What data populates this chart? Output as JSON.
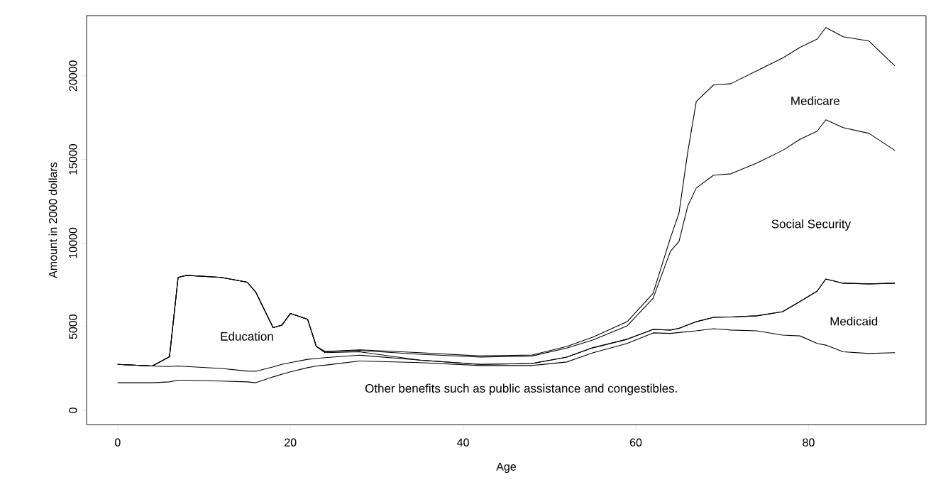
{
  "chart_data": {
    "type": "line",
    "xlabel": "Age",
    "ylabel": "Amount in 2000 dollars",
    "x": [
      0,
      4,
      6,
      7,
      8,
      12,
      15,
      16,
      18,
      19,
      20,
      22,
      23,
      24,
      28,
      35,
      42,
      48,
      52,
      55,
      59,
      62,
      64,
      65,
      66,
      67,
      69,
      71,
      74,
      77,
      79,
      81,
      82,
      84,
      87,
      90
    ],
    "series": [
      {
        "color": "#000000",
        "values": [
          1650,
          1650,
          1700,
          1800,
          1800,
          1750,
          1700,
          1650,
          2000,
          2150,
          2300,
          2550,
          2650,
          2700,
          2950,
          2850,
          2680,
          2680,
          2890,
          3440,
          4000,
          4630,
          4600,
          4650,
          4700,
          4750,
          4880,
          4800,
          4750,
          4500,
          4450,
          4000,
          3900,
          3500,
          3400,
          3450
        ]
      },
      {
        "color": "#000000",
        "values": [
          2750,
          2650,
          2620,
          2650,
          2620,
          2500,
          2350,
          2330,
          2600,
          2750,
          2850,
          3050,
          3100,
          3150,
          3300,
          3000,
          2750,
          2800,
          3180,
          3740,
          4250,
          4840,
          4800,
          4900,
          5100,
          5300,
          5560,
          5580,
          5650,
          5900,
          6500,
          7130,
          7850,
          7600,
          7560,
          7600
        ]
      },
      {
        "color": "#000000",
        "values": [
          2750,
          2650,
          3200,
          7950,
          8070,
          7950,
          7660,
          7060,
          4940,
          5090,
          5790,
          5440,
          3820,
          3450,
          3500,
          3000,
          2750,
          2800,
          3180,
          3740,
          4250,
          4840,
          4800,
          4900,
          5100,
          5300,
          5560,
          5580,
          5650,
          5900,
          6500,
          7130,
          7850,
          7600,
          7560,
          7600
        ]
      },
      {
        "color": "#000000",
        "values": [
          2750,
          2650,
          3200,
          7950,
          8070,
          7950,
          7660,
          7060,
          4940,
          5090,
          5790,
          5440,
          3820,
          3500,
          3580,
          3350,
          3180,
          3250,
          3720,
          4200,
          5050,
          6700,
          9500,
          10100,
          12200,
          13290,
          14060,
          14140,
          14780,
          15540,
          16200,
          16690,
          17370,
          16900,
          16560,
          15540
        ]
      },
      {
        "color": "#000000",
        "values": [
          2750,
          2650,
          3200,
          7950,
          8070,
          7950,
          7660,
          7060,
          4940,
          5090,
          5790,
          5440,
          3820,
          3520,
          3620,
          3450,
          3250,
          3310,
          3820,
          4370,
          5300,
          7000,
          10300,
          11800,
          15400,
          18470,
          19450,
          19530,
          20300,
          21060,
          21700,
          22200,
          22890,
          22340,
          22080,
          20590
        ]
      }
    ],
    "annotations": [
      "Other benefits such as public assistance and congestibles.",
      "Medicaid",
      "Education",
      "Social Security",
      "Medicare"
    ],
    "xlim": [
      -3.6,
      93.6
    ],
    "ylim": [
      -850,
      23600
    ],
    "xticks": [
      0,
      20,
      40,
      60,
      80
    ],
    "yticks": [
      0,
      5000,
      10000,
      15000,
      20000
    ]
  }
}
